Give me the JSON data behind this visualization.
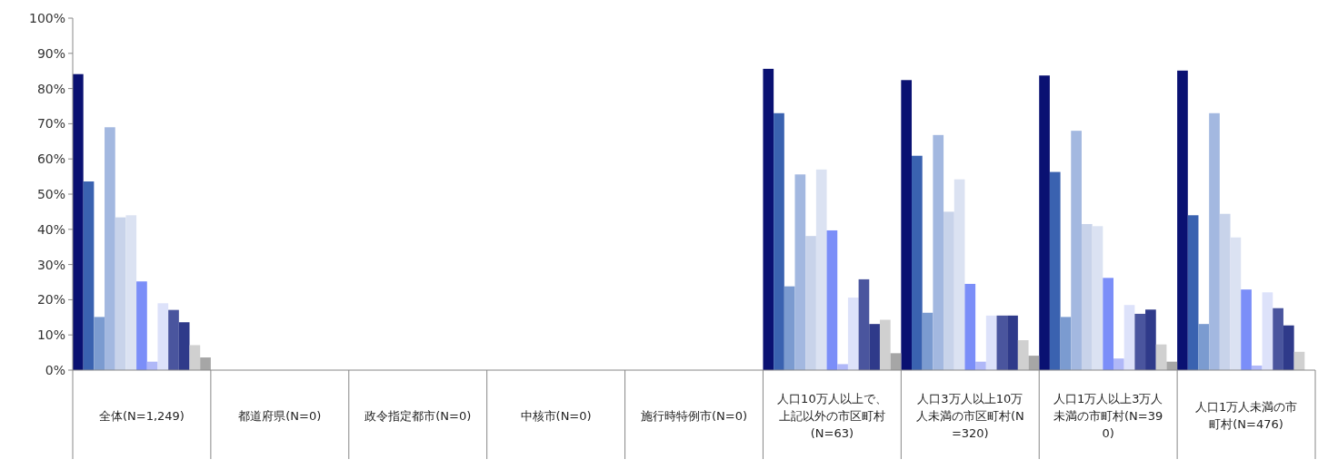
{
  "chart_data": {
    "type": "bar",
    "categories": [
      "全体(N=1,249)",
      "都道府県(N=0)",
      "政令指定都市(N=0)",
      "中核市(N=0)",
      "施行時特例市(N=0)",
      "人口10万人以上で、上記以外の市区町村(N=63)",
      "人口3万人以上10万人未満の市区町村(N=320)",
      "人口1万人以上3万人未満の市町村(N=390)",
      "人口1万人未満の市町村(N=476)"
    ],
    "ylim": [
      0,
      100
    ],
    "yticks": [
      {
        "value": 0,
        "label": "0%"
      },
      {
        "value": 10,
        "label": "10%"
      },
      {
        "value": 20,
        "label": "20%"
      },
      {
        "value": 30,
        "label": "30%"
      },
      {
        "value": 40,
        "label": "40%"
      },
      {
        "value": 50,
        "label": "50%"
      },
      {
        "value": 60,
        "label": "60%"
      },
      {
        "value": 70,
        "label": "70%"
      },
      {
        "value": 80,
        "label": "80%"
      },
      {
        "value": 90,
        "label": "90%"
      },
      {
        "value": 100,
        "label": "100%"
      }
    ],
    "series": [
      {
        "color": "#0a1172",
        "values": [
          84.1,
          null,
          null,
          null,
          null,
          85.6,
          82.4,
          83.7,
          85.1
        ]
      },
      {
        "color": "#3a62b0",
        "values": [
          53.6,
          null,
          null,
          null,
          null,
          73.0,
          60.9,
          56.3,
          44.0
        ]
      },
      {
        "color": "#7b9bd0",
        "values": [
          15.1,
          null,
          null,
          null,
          null,
          23.8,
          16.3,
          15.1,
          13.1
        ]
      },
      {
        "color": "#a3b8e0",
        "values": [
          69.0,
          null,
          null,
          null,
          null,
          55.6,
          66.8,
          68.0,
          73.0
        ]
      },
      {
        "color": "#c8d3ea",
        "values": [
          43.4,
          null,
          null,
          null,
          null,
          38.1,
          45.0,
          41.5,
          44.4
        ]
      },
      {
        "color": "#dbe2f2",
        "values": [
          44.0,
          null,
          null,
          null,
          null,
          57.0,
          54.2,
          40.9,
          37.7
        ]
      },
      {
        "color": "#7b8ef8",
        "values": [
          25.2,
          null,
          null,
          null,
          null,
          39.7,
          24.5,
          26.2,
          22.9
        ]
      },
      {
        "color": "#b0b8f8",
        "values": [
          2.4,
          null,
          null,
          null,
          null,
          1.7,
          2.4,
          3.3,
          1.3
        ]
      },
      {
        "color": "#dde2fa",
        "values": [
          19.0,
          null,
          null,
          null,
          null,
          20.6,
          15.5,
          18.5,
          22.1
        ]
      },
      {
        "color": "#4a559e",
        "values": [
          17.1,
          null,
          null,
          null,
          null,
          25.8,
          15.5,
          16.0,
          17.6
        ]
      },
      {
        "color": "#2f3a8a",
        "values": [
          13.6,
          null,
          null,
          null,
          null,
          13.1,
          15.5,
          17.2,
          12.7
        ]
      },
      {
        "color": "#d0d0d0",
        "values": [
          7.1,
          null,
          null,
          null,
          null,
          14.3,
          8.5,
          7.3,
          5.2
        ]
      },
      {
        "color": "#a6a6a6",
        "values": [
          3.6,
          null,
          null,
          null,
          null,
          4.8,
          4.1,
          2.4,
          null
        ]
      }
    ]
  }
}
